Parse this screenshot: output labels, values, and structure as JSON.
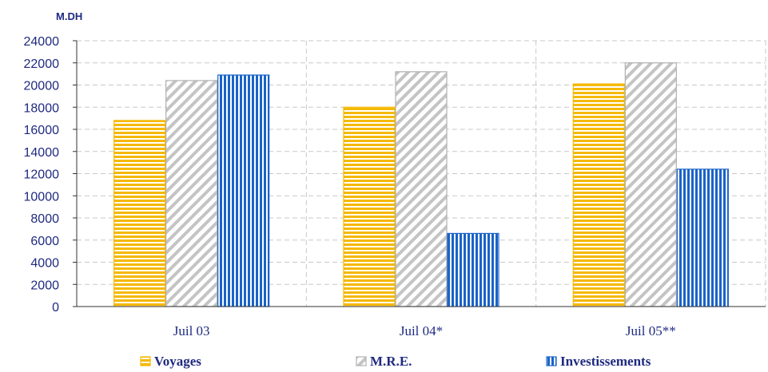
{
  "chart_data": {
    "type": "bar",
    "unit_label": "M.DH",
    "categories": [
      "Juil 03",
      "Juil 04*",
      "Juil 05**"
    ],
    "series": [
      {
        "name": "Voyages",
        "values": [
          16800,
          18000,
          20100
        ],
        "color": "#f5b800",
        "pattern": "horizontal-stripes"
      },
      {
        "name": "M.R.E.",
        "values": [
          20400,
          21200,
          22000
        ],
        "color": "#b9b9b9",
        "pattern": "diagonal-stripes"
      },
      {
        "name": "Investissements",
        "values": [
          20900,
          6600,
          12400
        ],
        "color": "#1a63c8",
        "pattern": "vertical-stripes"
      }
    ],
    "ylim": [
      0,
      24000
    ],
    "yticks": [
      0,
      2000,
      4000,
      6000,
      8000,
      10000,
      12000,
      14000,
      16000,
      18000,
      20000,
      22000,
      24000
    ],
    "grid": true,
    "legend_position": "bottom"
  }
}
